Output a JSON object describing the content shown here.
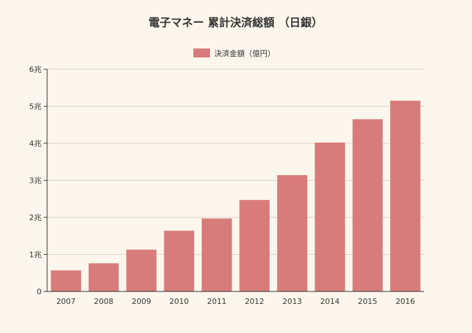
{
  "chart_data": {
    "type": "bar",
    "title": "電子マネー 累計決済総額 （日銀）",
    "categories": [
      "2007",
      "2008",
      "2009",
      "2010",
      "2011",
      "2012",
      "2013",
      "2014",
      "2015",
      "2016"
    ],
    "series": [
      {
        "name": "決済金額（億円）",
        "values": [
          0.57,
          0.76,
          1.13,
          1.64,
          1.97,
          2.47,
          3.14,
          4.02,
          4.65,
          5.15
        ],
        "color": "#d77c7a"
      }
    ],
    "y_ticks": [
      "0",
      "1兆",
      "2兆",
      "3兆",
      "4兆",
      "5兆",
      "6兆"
    ],
    "ylim": [
      0,
      6
    ],
    "grid": true,
    "legend_position": "top-center"
  }
}
